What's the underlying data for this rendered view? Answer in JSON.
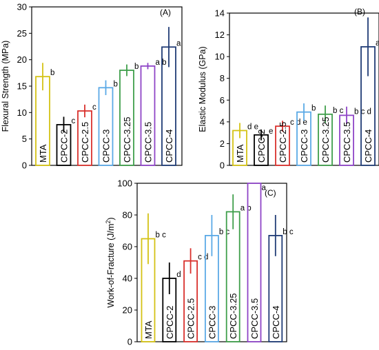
{
  "chart_data": [
    {
      "type": "bar",
      "panel": "(A)",
      "ylabel": "Flexural Strength (MPa)",
      "ylim": [
        0,
        30
      ],
      "yticks": [
        0,
        5,
        10,
        15,
        20,
        25,
        30
      ],
      "grid": false,
      "categories": [
        "MTA",
        "CPCC-2",
        "CPCC-2.5",
        "CPCC-3",
        "CPCC-3.25",
        "CPCC-3.5",
        "CPCC-4"
      ],
      "values": [
        16.8,
        7.7,
        10.3,
        14.7,
        18.0,
        18.8,
        22.4
      ],
      "errors": [
        2.6,
        1.5,
        1.2,
        1.4,
        1.1,
        0.6,
        3.8
      ],
      "significance": [
        "b",
        "c",
        "c",
        "b",
        "b",
        "a b",
        "a"
      ],
      "colors": [
        "#d4c215",
        "#000000",
        "#d9302c",
        "#5aa9e6",
        "#3e9e4a",
        "#8e44c7",
        "#1f3b75"
      ]
    },
    {
      "type": "bar",
      "panel": "(B)",
      "ylabel": "Elastic Modulus (GPa)",
      "ylim": [
        0,
        14
      ],
      "yticks": [
        0,
        2,
        4,
        6,
        8,
        10,
        12,
        14
      ],
      "grid": false,
      "categories": [
        "MTA",
        "CPCC-2",
        "CPCC-2.5",
        "CPCC-3",
        "CPCC-3.25",
        "CPCC-3.5",
        "CPCC-4"
      ],
      "values": [
        3.2,
        2.8,
        3.6,
        4.9,
        4.7,
        4.6,
        10.9
      ],
      "errors": [
        0.7,
        0.5,
        0.5,
        0.8,
        0.8,
        0.8,
        2.7
      ],
      "significance": [
        "d e",
        "e",
        "c d e",
        "b",
        "b c",
        "b c d",
        "a"
      ],
      "colors": [
        "#d4c215",
        "#000000",
        "#d9302c",
        "#5aa9e6",
        "#3e9e4a",
        "#8e44c7",
        "#1f3b75"
      ]
    },
    {
      "type": "bar",
      "panel": "(C)",
      "ylabel": "Work-of-Fracture (J/m²)",
      "ylim": [
        0,
        100
      ],
      "yticks": [
        0,
        20,
        40,
        60,
        80,
        100
      ],
      "grid": false,
      "categories": [
        "MTA",
        "CPCC-2",
        "CPCC-2.5",
        "CPCC-3",
        "CPCC-3.25",
        "CPCC-3.5",
        "CPCC-4"
      ],
      "values": [
        65,
        40,
        51,
        67,
        82,
        100,
        67
      ],
      "errors": [
        16,
        10,
        8,
        13,
        11,
        0,
        13
      ],
      "significance": [
        "b c",
        "d",
        "c d",
        "b c",
        "a b",
        "a",
        "b c"
      ],
      "colors": [
        "#d4c215",
        "#000000",
        "#d9302c",
        "#5aa9e6",
        "#3e9e4a",
        "#8e44c7",
        "#1f3b75"
      ]
    }
  ]
}
